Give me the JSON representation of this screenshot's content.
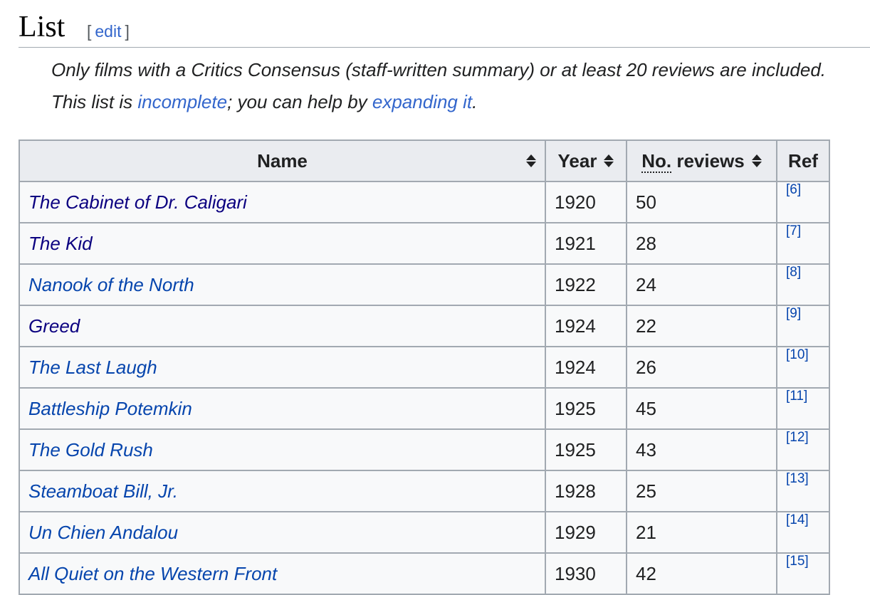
{
  "heading": {
    "title": "List",
    "edit_open": "[",
    "edit_label": "edit",
    "edit_close": "]"
  },
  "hatnote": {
    "line1": "Only films with a Critics Consensus (staff-written summary) or at least 20 reviews are included.",
    "line2_prefix": "This list is ",
    "line2_link1": "incomplete",
    "line2_mid": "; you can help by ",
    "line2_link2": "expanding it",
    "line2_suffix": "."
  },
  "table": {
    "headers": {
      "name": "Name",
      "year": "Year",
      "reviews_abbr": "No.",
      "reviews_rest": " reviews",
      "ref": "Ref"
    },
    "rows": [
      {
        "name": "The Cabinet of Dr. Caligari",
        "year": "1920",
        "reviews": "50",
        "ref": "[6]",
        "visited": true
      },
      {
        "name": "The Kid",
        "year": "1921",
        "reviews": "28",
        "ref": "[7]",
        "visited": true
      },
      {
        "name": "Nanook of the North",
        "year": "1922",
        "reviews": "24",
        "ref": "[8]",
        "visited": false
      },
      {
        "name": "Greed",
        "year": "1924",
        "reviews": "22",
        "ref": "[9]",
        "visited": true
      },
      {
        "name": "The Last Laugh",
        "year": "1924",
        "reviews": "26",
        "ref": "[10]",
        "visited": false
      },
      {
        "name": "Battleship Potemkin",
        "year": "1925",
        "reviews": "45",
        "ref": "[11]",
        "visited": false
      },
      {
        "name": "The Gold Rush",
        "year": "1925",
        "reviews": "43",
        "ref": "[12]",
        "visited": false
      },
      {
        "name": "Steamboat Bill, Jr.",
        "year": "1928",
        "reviews": "25",
        "ref": "[13]",
        "visited": false
      },
      {
        "name": "Un Chien Andalou",
        "year": "1929",
        "reviews": "21",
        "ref": "[14]",
        "visited": false
      },
      {
        "name": "All Quiet on the Western Front",
        "year": "1930",
        "reviews": "42",
        "ref": "[15]",
        "visited": false
      }
    ]
  },
  "colors": {
    "link": "#0645ad",
    "visited_link": "#0b0080",
    "header_bg": "#eaecf0",
    "cell_bg": "#f8f9fa",
    "border": "#a2a9b1"
  },
  "icons": {
    "sort": "sort-updown-icon"
  }
}
